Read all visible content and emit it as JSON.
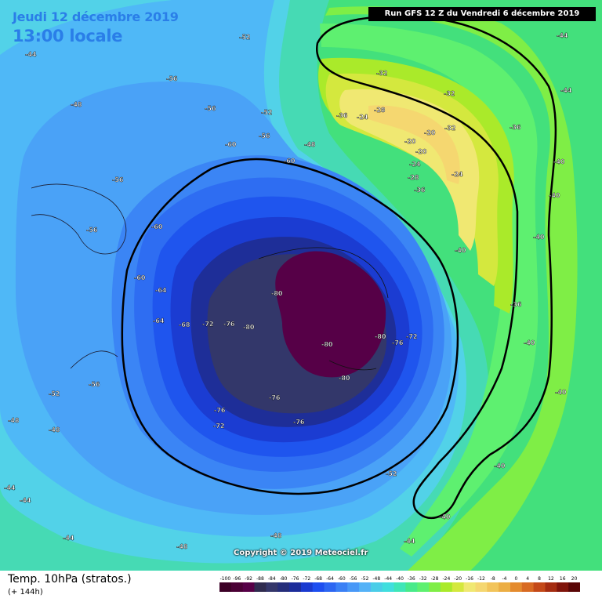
{
  "header": {
    "date": "Jeudi 12 décembre 2019",
    "local_time": "13:00 locale",
    "run_info": "Run GFS 12 Z du Vendredi 6 décembre 2019"
  },
  "copyright": "Copyright © 2019 Meteociel.fr",
  "footer": {
    "title": "Temp. 10hPa (stratos.)",
    "subtitle": "(+ 144h)"
  },
  "scale": {
    "ticks": [
      "-100",
      "-96",
      "-92",
      "-88",
      "-84",
      "-80",
      "-76",
      "-72",
      "-68",
      "-64",
      "-60",
      "-56",
      "-52",
      "-48",
      "-44",
      "-40",
      "-36",
      "-32",
      "-28",
      "-24",
      "-20",
      "-16",
      "-12",
      "-8",
      "-4",
      "0",
      "4",
      "8",
      "12",
      "16",
      "20"
    ],
    "colors": [
      "#3c0026",
      "#4a0035",
      "#560047",
      "#2f2b4f",
      "#34366a",
      "#252d7a",
      "#1c2c9a",
      "#1a3ad0",
      "#1d4ef0",
      "#2c66f2",
      "#3a80f5",
      "#4898f7",
      "#54b2f7",
      "#4acde8",
      "#40dede",
      "#3fe6b8",
      "#48ea8a",
      "#5ef070",
      "#7fee46",
      "#aaea2a",
      "#d4e83e",
      "#f0e872",
      "#f5d770",
      "#f2c45a",
      "#ecae44",
      "#e48b2e",
      "#d86a22",
      "#c44918",
      "#a52c10",
      "#80140a",
      "#5a0606"
    ]
  },
  "map_labels": [
    "-44",
    "-48",
    "-52",
    "-56",
    "-60",
    "-64",
    "-68",
    "-72",
    "-76",
    "-80",
    "-40",
    "-36",
    "-32",
    "-28",
    "-24",
    "-20"
  ]
}
